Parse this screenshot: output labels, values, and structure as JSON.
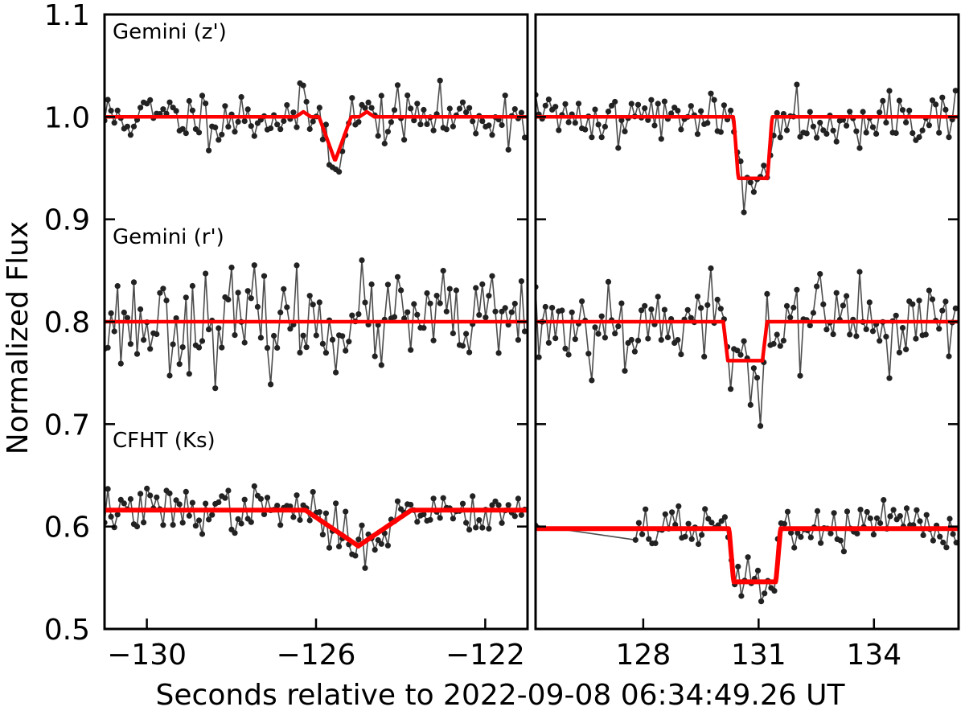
{
  "figure_title": "",
  "chart_data": {
    "type": "line",
    "xlabel": "Seconds relative to 2022-09-08 06:34:49.26 UT",
    "ylabel": "Normalized Flux",
    "ylim": [
      0.5,
      1.1
    ],
    "yticks": [
      0.5,
      0.6,
      0.7,
      0.8,
      0.9,
      1.0,
      1.1
    ],
    "ytick_labels": [
      "0.5",
      "0.6",
      "0.7",
      "0.8",
      "0.9",
      "1.0",
      "1.1"
    ],
    "colors": {
      "data": "#222222",
      "line": "#4d4d4d",
      "model": "#ff0000",
      "axes": "#000000"
    },
    "panels": [
      {
        "xlim": [
          -131,
          -121
        ],
        "xticks": [
          -130,
          -126,
          -122
        ],
        "xtick_labels": [
          "−130",
          "−126",
          "−122"
        ],
        "series": [
          {
            "name": "Gemini (z')",
            "baseline": 1.0,
            "noise": 0.013,
            "seed": 11,
            "start": -131.0,
            "end": -121.0,
            "step": 0.077,
            "dip": {
              "center": -125.55,
              "depth": 0.043,
              "half_width": 0.38,
              "shape": "v"
            },
            "bumps": true
          },
          {
            "name": "Gemini (r')",
            "baseline": 0.8,
            "noise": 0.024,
            "seed": 23,
            "start": -131.0,
            "end": -121.0,
            "step": 0.077,
            "dip": null,
            "bumps": false
          },
          {
            "name": "CFHT (Ks)",
            "baseline": 0.616,
            "noise": 0.011,
            "seed": 37,
            "start": -131.0,
            "end": -121.0,
            "step": 0.077,
            "dip": {
              "center": -125.0,
              "depth": 0.035,
              "half_width": 1.25,
              "shape": "v"
            },
            "bumps": false
          }
        ]
      },
      {
        "xlim": [
          125.2,
          136.2
        ],
        "xticks": [
          128,
          131,
          134
        ],
        "xtick_labels": [
          "128",
          "131",
          "134"
        ],
        "series": [
          {
            "name": "Gemini (z')",
            "baseline": 1.0,
            "noise": 0.013,
            "seed": 41,
            "start": 125.2,
            "end": 136.2,
            "step": 0.086,
            "dip": {
              "center": 130.85,
              "depth": 0.06,
              "half_width": 0.38,
              "shape": "box"
            },
            "bumps": false
          },
          {
            "name": "Gemini (r')",
            "baseline": 0.8,
            "noise": 0.024,
            "seed": 53,
            "start": 125.2,
            "end": 136.2,
            "step": 0.086,
            "dip": {
              "center": 130.65,
              "depth": 0.038,
              "half_width": 0.45,
              "shape": "box"
            },
            "bumps": false
          },
          {
            "name": "CFHT (Ks)",
            "baseline": 0.598,
            "noise": 0.011,
            "seed": 67,
            "start": 127.8,
            "end": 136.2,
            "step": 0.086,
            "dip": {
              "center": 130.9,
              "depth": 0.052,
              "half_width": 0.55,
              "shape": "box"
            },
            "bumps": false,
            "lead_point": [
              125.2,
              0.601
            ]
          }
        ]
      }
    ]
  }
}
